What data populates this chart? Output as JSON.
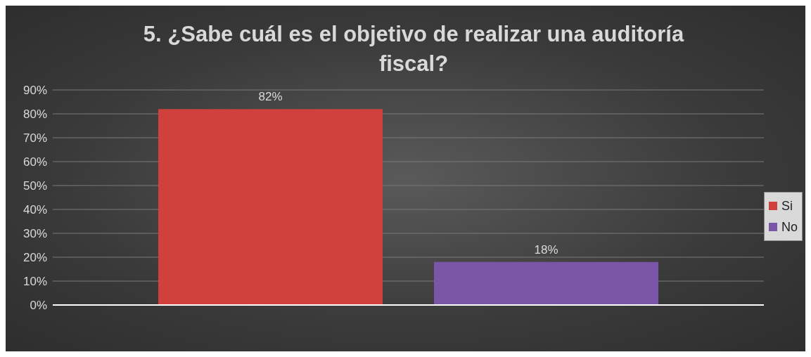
{
  "chart_data": {
    "type": "bar",
    "title": "5. ¿Sabe cuál es el objetivo de realizar una auditoría fiscal?",
    "categories": [
      null
    ],
    "series": [
      {
        "name": "Si",
        "color": "#d0403c",
        "values": [
          82
        ],
        "value_labels": [
          "82%"
        ]
      },
      {
        "name": "No",
        "color": "#7b55a8",
        "values": [
          18
        ],
        "value_labels": [
          "18%"
        ]
      }
    ],
    "ylim": [
      0,
      90
    ],
    "yticks": [
      {
        "value": 0,
        "label": "0%"
      },
      {
        "value": 10,
        "label": "10%"
      },
      {
        "value": 20,
        "label": "20%"
      },
      {
        "value": 30,
        "label": "30%"
      },
      {
        "value": 40,
        "label": "40%"
      },
      {
        "value": 50,
        "label": "50%"
      },
      {
        "value": 60,
        "label": "60%"
      },
      {
        "value": 70,
        "label": "70%"
      },
      {
        "value": 80,
        "label": "80%"
      },
      {
        "value": 90,
        "label": "90%"
      }
    ],
    "grid": "y",
    "legend": "right"
  }
}
